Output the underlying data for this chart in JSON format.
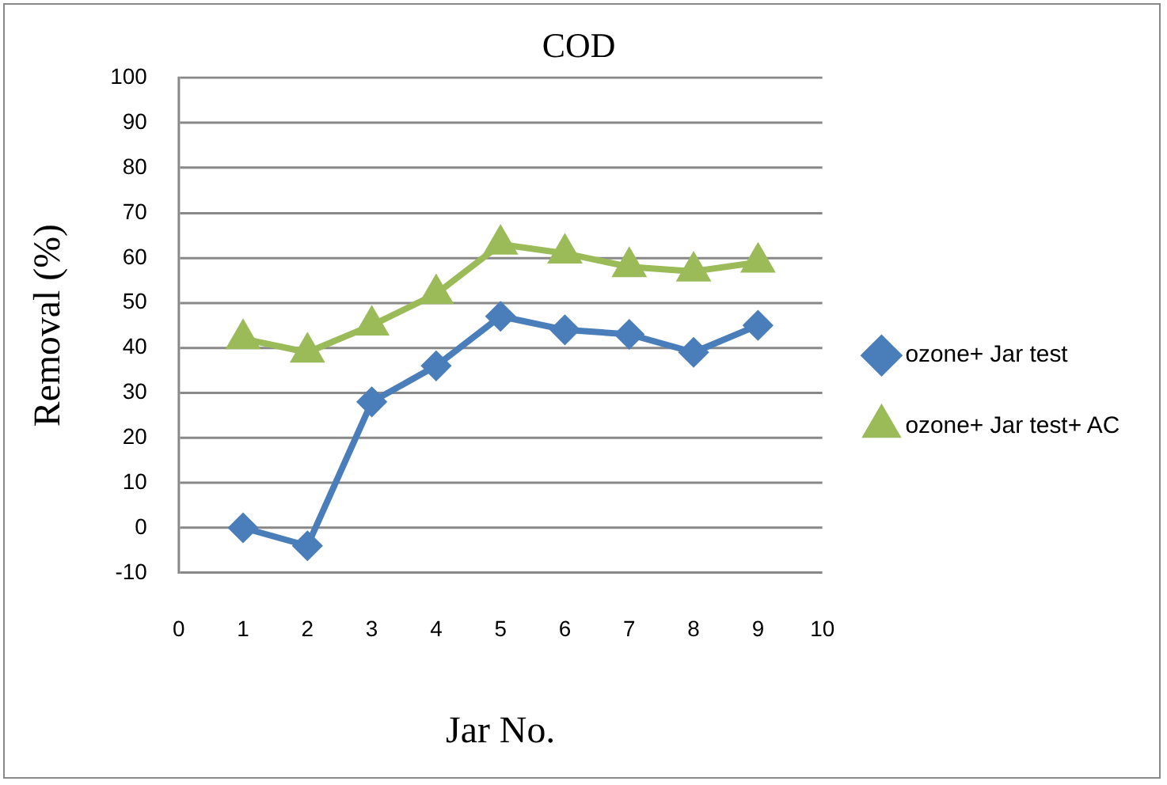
{
  "chart_data": {
    "type": "line",
    "title": "COD",
    "xlabel": "Jar No.",
    "ylabel": "Removal (%)",
    "x": [
      1,
      2,
      3,
      4,
      5,
      6,
      7,
      8,
      9
    ],
    "series": [
      {
        "name": "ozone+ Jar test",
        "color": "#4a7ebb",
        "marker": "diamond",
        "values": [
          0,
          -4,
          28,
          36,
          47,
          44,
          43,
          39,
          45
        ]
      },
      {
        "name": "ozone+ Jar test+ AC",
        "color": "#9bbb59",
        "marker": "triangle",
        "values": [
          42,
          39,
          45,
          52,
          63,
          61,
          58,
          57,
          59
        ]
      }
    ],
    "xlim": [
      0,
      10
    ],
    "xticks": [
      0,
      1,
      2,
      3,
      4,
      5,
      6,
      7,
      8,
      9,
      10
    ],
    "ylim": [
      -10,
      100
    ],
    "yticks": [
      -10,
      0,
      10,
      20,
      30,
      40,
      50,
      60,
      70,
      80,
      90,
      100
    ],
    "grid": "y",
    "legend": "right"
  }
}
